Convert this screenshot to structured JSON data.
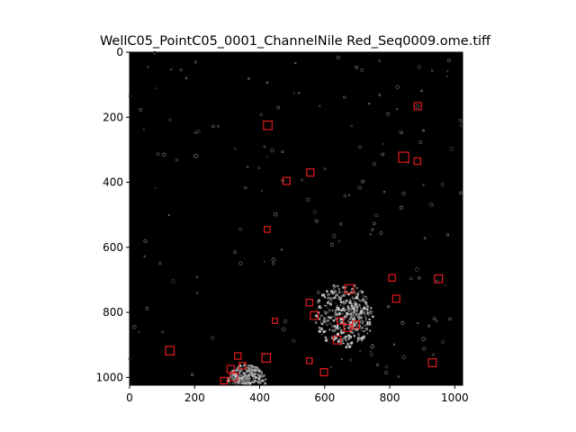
{
  "figure": {
    "title": "WellC05_PointC05_0001_ChannelNile Red_Seq0009.ome.tiff"
  },
  "colors": {
    "image_background": "#000000",
    "marker": "#e41a1c",
    "axis": "#000000"
  },
  "chart_data": {
    "type": "scatter",
    "title": "WellC05_PointC05_0001_ChannelNile Red_Seq0009.ome.tiff",
    "xlabel": "",
    "ylabel": "",
    "xlim": [
      0,
      1024
    ],
    "ylim": [
      1024,
      0
    ],
    "y_inverted": true,
    "grid": false,
    "background": "grayscale microscopy image (mostly black with scattered gray particles and two bright clusters)",
    "x_ticks": [
      0,
      200,
      400,
      600,
      800,
      1000
    ],
    "y_ticks": [
      0,
      200,
      400,
      600,
      800,
      1000
    ],
    "marker": "square",
    "series": [
      {
        "x": [
          425,
          886,
          843,
          885,
          556,
          483,
          423,
          950,
          807,
          820,
          553,
          676,
          568,
          447,
          648,
          670,
          696,
          638,
          124,
          931,
          333,
          420,
          553,
          598,
          347,
          311,
          320,
          290
        ],
        "y": [
          225,
          166,
          323,
          335,
          370,
          396,
          545,
          697,
          694,
          758,
          770,
          728,
          810,
          826,
          826,
          848,
          838,
          885,
          918,
          955,
          934,
          940,
          949,
          984,
          964,
          974,
          999,
          1010
        ],
        "size": [
          12,
          10,
          14,
          9,
          10,
          10,
          8,
          11,
          9,
          10,
          9,
          12,
          11,
          7,
          9,
          10,
          10,
          11,
          12,
          11,
          9,
          12,
          8,
          10,
          9,
          10,
          11,
          9
        ]
      }
    ]
  }
}
